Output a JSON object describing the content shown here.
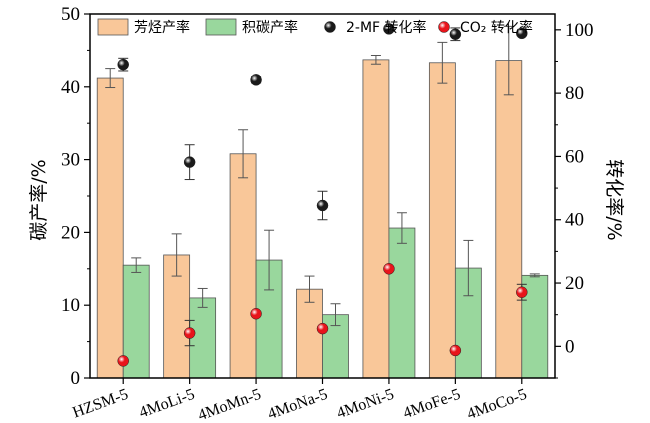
{
  "chart_data": {
    "type": "bar",
    "categories": [
      "HZSM-5",
      "4MoLi-5",
      "4MoMn-5",
      "4MoNa-5",
      "4MoNi-5",
      "4MoFe-5",
      "4MoCo-5"
    ],
    "series": [
      {
        "name": "芳烃产率",
        "axis": "left",
        "kind": "bar",
        "color": "#f9c799",
        "values": [
          41.2,
          16.9,
          30.8,
          12.2,
          43.7,
          43.3,
          43.6
        ],
        "errors": [
          1.3,
          2.9,
          3.3,
          1.8,
          0.6,
          2.8,
          4.7
        ]
      },
      {
        "name": "积碳产率",
        "axis": "left",
        "kind": "bar",
        "color": "#99d79d",
        "values": [
          15.5,
          11.0,
          16.2,
          8.7,
          20.6,
          15.1,
          14.1
        ],
        "errors": [
          1.0,
          1.3,
          4.1,
          1.5,
          2.1,
          3.8,
          0.2
        ]
      },
      {
        "name": "2-MF 转化率",
        "axis": "right",
        "kind": "scatter",
        "color": "#1a1a1a",
        "values": [
          89.0,
          58.2,
          84.2,
          44.5,
          100.3,
          98.6,
          98.9
        ],
        "errors": [
          2.0,
          5.5,
          1.0,
          4.5,
          0.5,
          2.0,
          0.8
        ]
      },
      {
        "name": "CO₂ 转化率",
        "axis": "right",
        "kind": "scatter",
        "color": "#e8141b",
        "values": [
          -4.6,
          4.2,
          10.3,
          5.6,
          24.5,
          -1.3,
          17.1
        ],
        "errors": [
          0,
          4.0,
          0,
          0,
          0,
          0,
          2.5
        ]
      }
    ],
    "ylabel": "碳产率/%",
    "y2label": "转化率/%",
    "ylim": [
      0,
      50
    ],
    "y2lim": [
      -10,
      105
    ],
    "yticks": [
      0,
      10,
      20,
      30,
      40,
      50
    ],
    "y2ticks": [
      0,
      20,
      40,
      60,
      80,
      100
    ],
    "legend_placement": "top",
    "grid": false
  }
}
